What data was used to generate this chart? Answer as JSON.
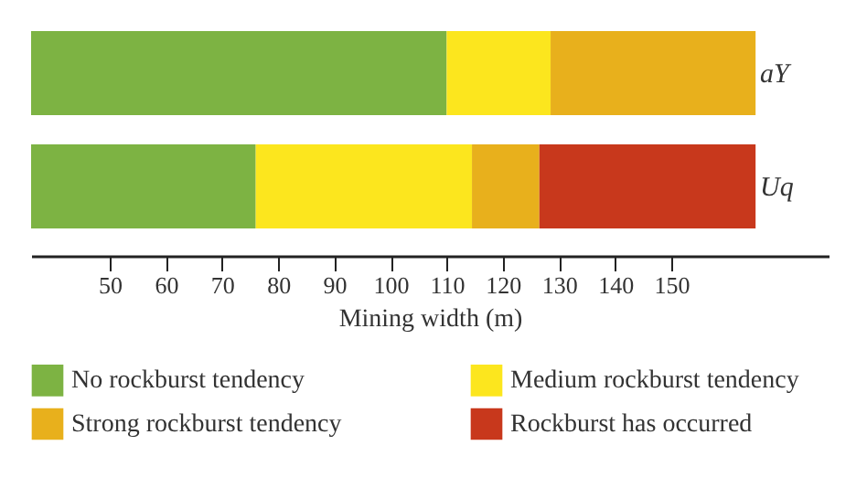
{
  "chart_data": {
    "type": "bar",
    "orientation": "horizontal",
    "xlabel": "Mining width (m)",
    "categories": [
      "aY",
      "Uq"
    ],
    "series": [
      {
        "name": "No rockburst tendency",
        "color": "#7db343",
        "base": [
          36,
          36
        ],
        "values": [
          74,
          40
        ]
      },
      {
        "name": "Medium rockburst tendency",
        "color": "#fce61e",
        "base": [
          110,
          76
        ],
        "values": [
          18.5,
          38.5
        ]
      },
      {
        "name": "Strong rockburst tendency",
        "color": "#e8b01c",
        "base": [
          128.5,
          114.5
        ],
        "values": [
          36.5,
          12
        ]
      },
      {
        "name": "Rockburst has occurred",
        "color": "#c8381c",
        "base": [
          null,
          126.5
        ],
        "values": [
          null,
          38.5
        ]
      }
    ],
    "xlim": [
      36,
      178
    ],
    "xticks": [
      50,
      60,
      70,
      80,
      90,
      100,
      110,
      120,
      130,
      140,
      150
    ],
    "legend": "bottom",
    "grid": false
  }
}
